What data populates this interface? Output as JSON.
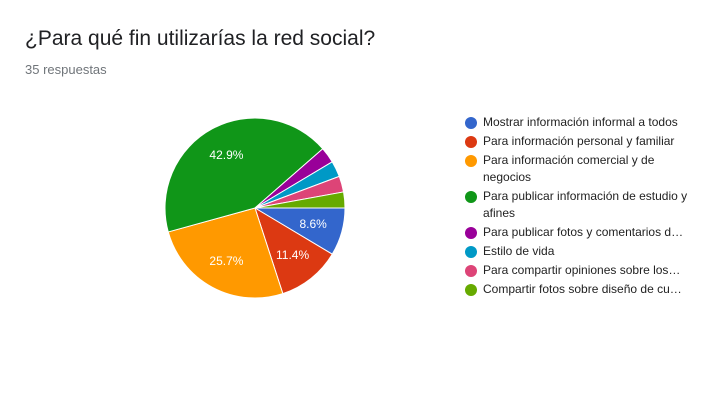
{
  "header": {
    "title": "¿Para qué fin utilizarías la red social?",
    "subtitle": "35 respuestas"
  },
  "chart_data": {
    "type": "pie",
    "total_responses": 35,
    "slices": [
      {
        "label": "Mostrar información informal a todos",
        "value": 3,
        "percent_label": "8.6%",
        "color": "#3366cc"
      },
      {
        "label": "Para información personal y familiar",
        "value": 4,
        "percent_label": "11.4%",
        "color": "#dc3912"
      },
      {
        "label": "Para información comercial y de negocios",
        "value": 9,
        "percent_label": "25.7%",
        "color": "#ff9900"
      },
      {
        "label": "Para publicar información de estudio y afines",
        "value": 15,
        "percent_label": "42.9%",
        "color": "#109618"
      },
      {
        "label": "Para publicar fotos y comentarios d…",
        "value": 1,
        "percent_label": "",
        "color": "#990099"
      },
      {
        "label": "Estilo de vida",
        "value": 1,
        "percent_label": "",
        "color": "#0099c6"
      },
      {
        "label": "Para compartir opiniones sobre los…",
        "value": 1,
        "percent_label": "",
        "color": "#dd4477"
      },
      {
        "label": "Compartir fotos sobre diseño de cu…",
        "value": 1,
        "percent_label": "",
        "color": "#66aa00"
      }
    ],
    "legend_position": "right"
  }
}
